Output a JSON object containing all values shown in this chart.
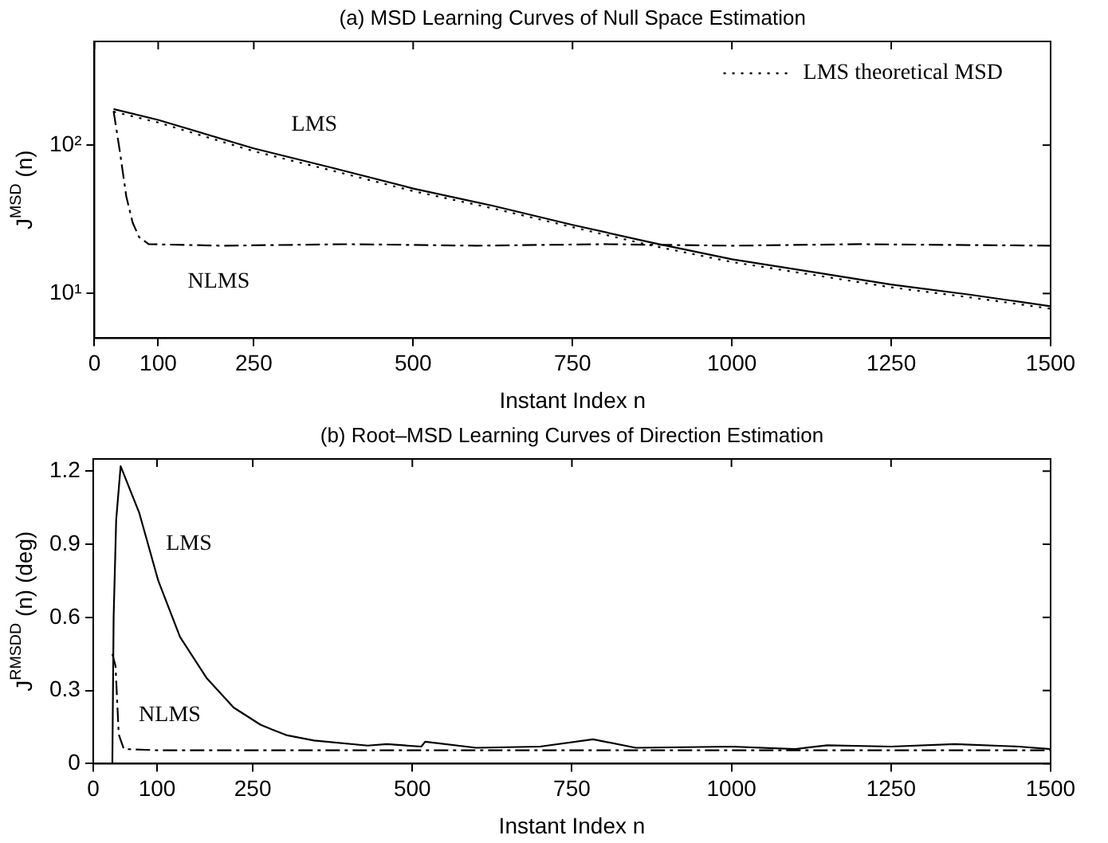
{
  "chart_data": [
    {
      "type": "line",
      "title": "(a) MSD Learning Curves of Null Space Estimation",
      "xlabel": "Instant Index n",
      "ylabel": "J$^{MSD}$ (n)",
      "log": "y",
      "xlim": [
        0,
        1500
      ],
      "xticks": [
        0,
        100,
        250,
        500,
        750,
        1000,
        1250,
        1500
      ],
      "ylim": [
        5,
        500
      ],
      "yticks": [
        {
          "value": 10,
          "label": "10¹"
        },
        {
          "value": 100,
          "label": "10²"
        }
      ],
      "legend": "top right",
      "marker": "none",
      "series": [
        {
          "color": "#000000",
          "line_style": "solid",
          "x": [
            30,
            100,
            250,
            375,
            500,
            625,
            750,
            875,
            1000,
            1125,
            1250,
            1375,
            1500
          ],
          "values": [
            175,
            148,
            95,
            70,
            51,
            39,
            29,
            22,
            17,
            14,
            11.5,
            9.8,
            8.2
          ]
        },
        {
          "name": "LMS theoretical MSD",
          "color": "#000000",
          "line_style": "dotted",
          "x": [
            30,
            100,
            250,
            375,
            500,
            625,
            750,
            875,
            1000,
            1125,
            1250,
            1375,
            1500
          ],
          "values": [
            168,
            142,
            91,
            67,
            49,
            37.5,
            28,
            21,
            16.3,
            13.4,
            11,
            9.4,
            7.9
          ]
        },
        {
          "color": "#000000",
          "line_style": "dashed",
          "x": [
            30,
            40,
            50,
            60,
            70,
            85,
            200,
            400,
            600,
            800,
            1000,
            1200,
            1500
          ],
          "values": [
            170,
            90,
            45,
            30,
            24,
            21.5,
            21,
            21.5,
            21,
            21.5,
            21,
            21.5,
            21
          ]
        }
      ],
      "annotations": [
        "LMS",
        "NLMS"
      ]
    },
    {
      "type": "line",
      "title": "(b) Root–MSD Learning Curves of Direction Estimation",
      "xlabel": "Instant Index n",
      "ylabel": "J$^{RMSDD}$ (n) (deg)",
      "xlim": [
        0,
        1500
      ],
      "xticks": [
        0,
        100,
        250,
        500,
        750,
        1000,
        1250,
        1500
      ],
      "ylim": [
        0,
        1.25
      ],
      "yticks": [
        0,
        0.3,
        0.6,
        0.9,
        1.2
      ],
      "marker": "none",
      "series": [
        {
          "color": "#000000",
          "line_style": "solid",
          "x": [
            30,
            32,
            36,
            43,
            72,
            102,
            136,
            178,
            220,
            262,
            280,
            304,
            346,
            430,
            460,
            514,
            520,
            600,
            700,
            783,
            850,
            1000,
            1100,
            1150,
            1250,
            1350,
            1450,
            1500
          ],
          "values": [
            0,
            0.6,
            1.0,
            1.22,
            1.03,
            0.75,
            0.52,
            0.35,
            0.23,
            0.16,
            0.14,
            0.116,
            0.095,
            0.074,
            0.08,
            0.07,
            0.09,
            0.065,
            0.07,
            0.1,
            0.065,
            0.07,
            0.06,
            0.075,
            0.07,
            0.08,
            0.07,
            0.06
          ]
        },
        {
          "color": "#000000",
          "line_style": "dashed",
          "x": [
            30,
            35,
            40,
            48,
            100,
            300,
            500,
            1000,
            1500
          ],
          "values": [
            0.45,
            0.4,
            0.12,
            0.06,
            0.055,
            0.055,
            0.055,
            0.055,
            0.055
          ]
        }
      ],
      "annotations": [
        "LMS",
        "NLMS"
      ]
    }
  ]
}
